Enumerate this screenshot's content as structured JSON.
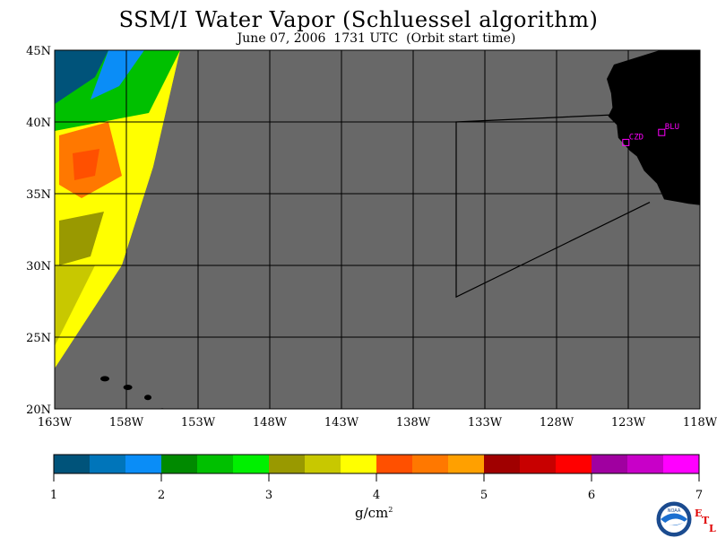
{
  "title": "SSM/I Water Vapor (Schluessel algorithm)",
  "subtitle": "June 07, 2006  1731 UTC  (Orbit start time)",
  "lat_labels": [
    "45N",
    "40N",
    "35N",
    "30N",
    "25N",
    "20N"
  ],
  "lon_labels": [
    "163W",
    "158W",
    "153W",
    "148W",
    "143W",
    "138W",
    "133W",
    "128W",
    "123W",
    "118W"
  ],
  "stations": [
    {
      "id": "CZD",
      "lat": 38.6,
      "lon": -123.2
    },
    {
      "id": "BLU",
      "lat": 39.3,
      "lon": -120.7
    }
  ],
  "colorbar": {
    "ticks": [
      "1",
      "2",
      "3",
      "4",
      "5",
      "6",
      "7"
    ],
    "units": "g/cm",
    "units_sup": "2",
    "colors": [
      "#00537a",
      "#0075ba",
      "#0a8df7",
      "#008a00",
      "#00c000",
      "#00f000",
      "#999900",
      "#c8c800",
      "#ffff00",
      "#ff5000",
      "#ff7800",
      "#ffa000",
      "#a00000",
      "#c80000",
      "#ff0000",
      "#a000a0",
      "#c800c8",
      "#ff00ff"
    ]
  },
  "colors": {
    "ocean": "#686868",
    "land": "#000000",
    "no_data": "#686868",
    "station_marker": "#ff00ff"
  },
  "logo_text": "NOAA",
  "etl": [
    "E",
    "T",
    "L"
  ]
}
